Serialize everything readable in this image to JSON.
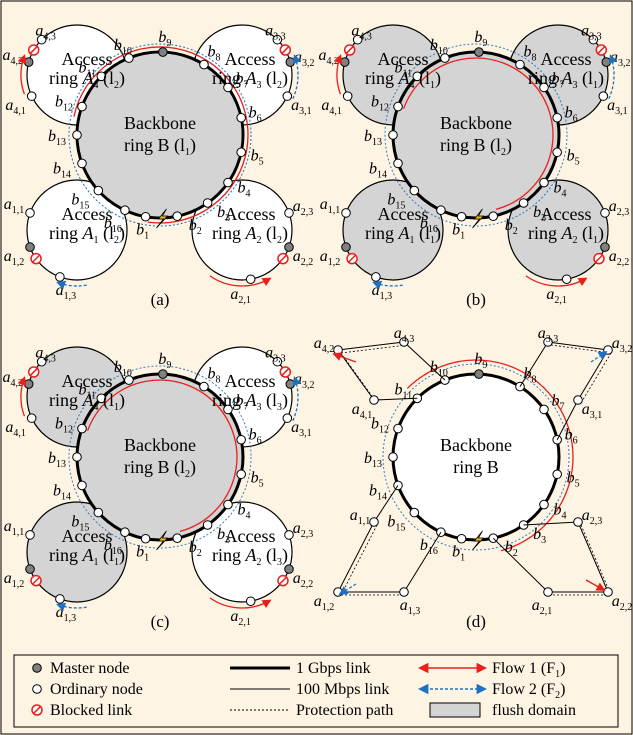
{
  "panels": [
    {
      "caption": "(a)",
      "access": {
        "A4": {
          "line1": "Access",
          "line2a": "ring ",
          "var": "A",
          "sub": "4",
          "line3": "(l",
          "lsub": "2",
          "tail": ")"
        },
        "A3": {
          "line1": "Access",
          "line2a": "ring ",
          "var": "A",
          "sub": "3",
          "line3": "(l",
          "lsub": "2",
          "tail": ")"
        },
        "A1": {
          "line1": "Access",
          "line2a": "ring ",
          "var": "A",
          "sub": "1",
          "line3": "(l",
          "lsub": "2",
          "tail": ")"
        },
        "A2": {
          "line1": "Access",
          "line2a": "ring ",
          "var": "A",
          "sub": "2",
          "line3": "(l",
          "lsub": "2",
          "tail": ")"
        }
      },
      "backbone": {
        "line1": "Backbone",
        "line2": "ring B (l",
        "lsub": "1",
        "tail": ")"
      }
    },
    {
      "caption": "(b)",
      "access": {
        "A4": {
          "line1": "Access",
          "line2a": "ring ",
          "var": "A",
          "sub": "4",
          "line3": "(l",
          "lsub": "1",
          "tail": ")"
        },
        "A3": {
          "line1": "Access",
          "line2a": "ring ",
          "var": "A",
          "sub": "3",
          "line3": "(l",
          "lsub": "1",
          "tail": ")"
        },
        "A1": {
          "line1": "Access",
          "line2a": "ring ",
          "var": "A",
          "sub": "1",
          "line3": "(l",
          "lsub": "1",
          "tail": ")"
        },
        "A2": {
          "line1": "Access",
          "line2a": "ring ",
          "var": "A",
          "sub": "2",
          "line3": "(l",
          "lsub": "1",
          "tail": ")"
        }
      },
      "backbone": {
        "line1": "Backbone",
        "line2": "ring B (l",
        "lsub": "2",
        "tail": ")"
      }
    },
    {
      "caption": "(c)",
      "access": {
        "A4": {
          "line1": "Access",
          "line2a": "ring ",
          "var": "A",
          "sub": "4",
          "line3": "(l",
          "lsub": "1",
          "tail": ")"
        },
        "A3": {
          "line1": "Access",
          "line2a": "ring ",
          "var": "A",
          "sub": "3",
          "line3": "(l",
          "lsub": "3",
          "tail": ")"
        },
        "A1": {
          "line1": "Access",
          "line2a": "ring ",
          "var": "A",
          "sub": "1",
          "line3": "(l",
          "lsub": "1",
          "tail": ")"
        },
        "A2": {
          "line1": "Access",
          "line2a": "ring ",
          "var": "A",
          "sub": "2",
          "line3": "(l",
          "lsub": "3",
          "tail": ")"
        }
      },
      "backbone": {
        "line1": "Backbone",
        "line2": "ring B (l",
        "lsub": "2",
        "tail": ")"
      }
    },
    {
      "caption": "(d)",
      "backbone": {
        "line1": "Backbone",
        "line2": "ring B"
      }
    }
  ],
  "node_letters": {
    "b": "b",
    "a": "a"
  },
  "legend": {
    "master": "Master node",
    "ordinary": "Ordinary node",
    "blocked": "Blocked link",
    "gbps": "1 Gbps link",
    "mbps": "100 Mbps link",
    "protection": "Protection path",
    "flow1": "Flow 1 (F",
    "flow1_sub": "1",
    "flow2": "Flow 2 (F",
    "flow2_sub": "2",
    "flush": "flush domain"
  },
  "colors": {
    "background": "#fdf4e3",
    "flush_fill": "#d4d4d4",
    "master_fill": "#808080",
    "flow1": "#e8201c",
    "flow2": "#1f70c1",
    "blocked": "#e8201c",
    "border": "#000000"
  },
  "icons": [
    "master-node-icon",
    "ordinary-node-icon",
    "blocked-link-icon",
    "failure-bolt-icon",
    "flow-arrow-icon"
  ]
}
